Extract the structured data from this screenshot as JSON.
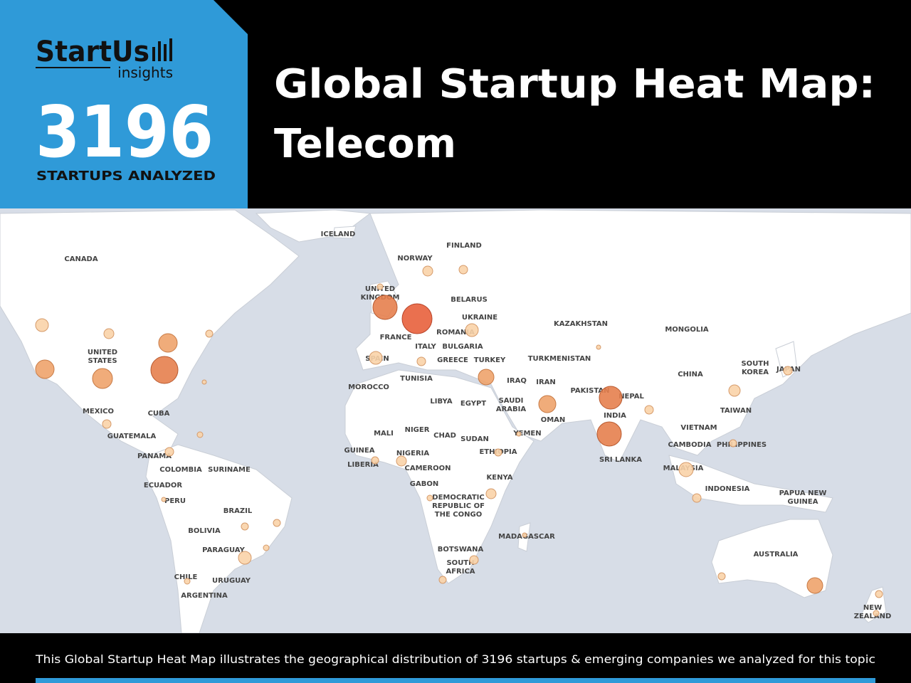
{
  "logo": {
    "name": "StartUs",
    "sub": "insights"
  },
  "stat": {
    "number": 3196,
    "label": "STARTUPS ANALYZED"
  },
  "title": [
    "Global Startup Heat Map:",
    "Telecom"
  ],
  "map": {
    "labels": [
      [
        "ICELAND"
      ],
      [
        "CANADA"
      ],
      [
        "NORWAY"
      ],
      [
        "FINLAND"
      ],
      [
        "UNITED",
        "KINGDOM"
      ],
      [
        "BELARUS"
      ],
      [
        "UKRAINE"
      ],
      [
        "FRANCE"
      ],
      [
        "ROMANIA"
      ],
      [
        "BULGARIA"
      ],
      [
        "ITALY"
      ],
      [
        "GREECE"
      ],
      [
        "TURKEY"
      ],
      [
        "SPAIN"
      ],
      [
        "TUNISIA"
      ],
      [
        "MOROCCO"
      ],
      [
        "LIBYA"
      ],
      [
        "EGYPT"
      ],
      [
        "IRAQ"
      ],
      [
        "IRAN"
      ],
      [
        "SAUDI",
        "ARABIA"
      ],
      [
        "KAZAKHSTAN"
      ],
      [
        "MONGOLIA"
      ],
      [
        "TURKMENISTAN"
      ],
      [
        "CHINA"
      ],
      [
        "SOUTH",
        "KOREA"
      ],
      [
        "JAPAN"
      ],
      [
        "PAKISTAN"
      ],
      [
        "NEPAL"
      ],
      [
        "INDIA"
      ],
      [
        "OMAN"
      ],
      [
        "YEMEN"
      ],
      [
        "SRI LANKA"
      ],
      [
        "TAIWAN"
      ],
      [
        "VIETNAM"
      ],
      [
        "CAMBODIA"
      ],
      [
        "PHILIPPINES"
      ],
      [
        "MALAYSIA"
      ],
      [
        "INDONESIA"
      ],
      [
        "PAPUA NEW",
        "GUINEA"
      ],
      [
        "AUSTRALIA"
      ],
      [
        "NEW",
        "ZEALAND"
      ],
      [
        "UNITED",
        "STATES"
      ],
      [
        "MEXICO"
      ],
      [
        "CUBA"
      ],
      [
        "GUATEMALA"
      ],
      [
        "PANAMA"
      ],
      [
        "COLOMBIA"
      ],
      [
        "SURINAME"
      ],
      [
        "ECUADOR"
      ],
      [
        "PERU"
      ],
      [
        "BRAZIL"
      ],
      [
        "BOLIVIA"
      ],
      [
        "PARAGUAY"
      ],
      [
        "CHILE"
      ],
      [
        "URUGUAY"
      ],
      [
        "ARGENTINA"
      ],
      [
        "MALI"
      ],
      [
        "NIGER"
      ],
      [
        "CHAD"
      ],
      [
        "SUDAN"
      ],
      [
        "GUINEA"
      ],
      [
        "NIGERIA"
      ],
      [
        "ETHIOPIA"
      ],
      [
        "LIBERIA"
      ],
      [
        "CAMEROON"
      ],
      [
        "KENYA"
      ],
      [
        "GABON"
      ],
      [
        "DEMOCRATIC",
        "REPUBLIC OF",
        "THE CONGO"
      ],
      [
        "MADAGASCAR"
      ],
      [
        "BOTSWANA"
      ],
      [
        "SOUTH",
        "AFRICA"
      ]
    ]
  },
  "footer": "This Global Startup Heat Map illustrates the geographical distribution of 3196 startups & emerging companies we analyzed for this topic"
}
